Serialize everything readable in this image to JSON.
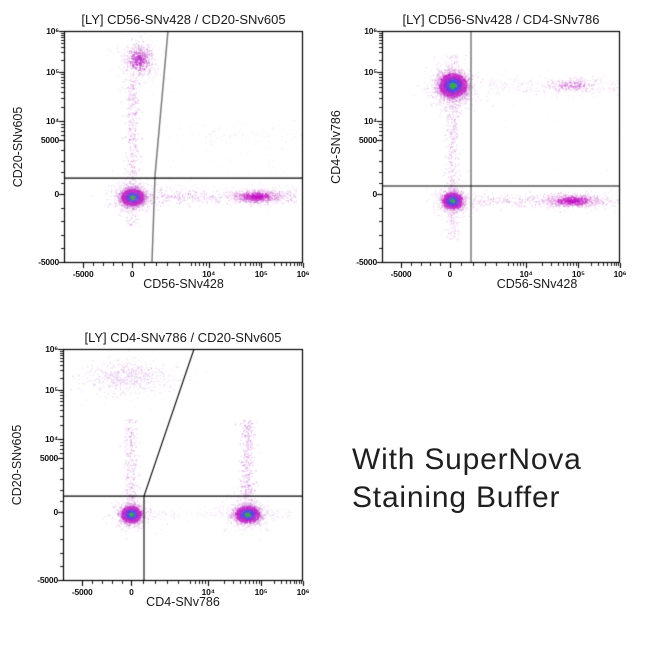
{
  "caption": {
    "line1": "With SuperNova",
    "line2": "Staining Buffer"
  },
  "palette": {
    "density_ramp": [
      "#2fb341",
      "#3a55e8",
      "#8c2fd9",
      "#c726c7",
      "#d88ad8"
    ],
    "sparse_dot": "#c45ecf",
    "sparse_dot_alt": "#b072d6",
    "band_dark": "#b325c0",
    "dense_magenta": [
      "#c315c3",
      "#ca38ca",
      "#d46fd4",
      "#e0a0e0"
    ],
    "mag_cluster": [
      "#c02ec8",
      "#c84fd0",
      "#d078d4",
      "#dfa8e2"
    ],
    "mag_soft": [
      "#cb55cf",
      "#d580d6",
      "#e2abe2"
    ],
    "speckle_gray": "#9b86b0",
    "gate_gray": "#7a7a7a",
    "gate_black": "#000000",
    "frame": "#000000",
    "text": "#1a1a1a"
  },
  "axes_shared": {
    "scale": "biexponential",
    "x": {
      "anchors": [
        [
          -5000,
          0.08
        ],
        [
          0,
          0.285
        ],
        [
          5000,
          0.53
        ],
        [
          10000,
          0.605
        ],
        [
          100000,
          0.825
        ],
        [
          1000000,
          1.0
        ]
      ],
      "ticks": [
        {
          "v": -5000,
          "f": 0.08,
          "label": "-5000"
        },
        {
          "v": 0,
          "f": 0.285,
          "label": "0"
        },
        {
          "v": 10000,
          "f": 0.605,
          "label": "10⁴"
        },
        {
          "v": 100000,
          "f": 0.825,
          "label": "10⁵"
        },
        {
          "v": 1000000,
          "f": 1.0,
          "label": "10⁶"
        }
      ],
      "minor_values": [
        -4000,
        -3000,
        -2000,
        -1000,
        1000,
        2000,
        3000,
        4000,
        5000,
        6000,
        7000,
        8000,
        9000,
        20000,
        30000,
        40000,
        50000,
        60000,
        70000,
        80000,
        90000,
        200000,
        300000,
        400000,
        500000,
        600000,
        700000,
        800000,
        900000
      ]
    },
    "y": {
      "anchors": [
        [
          -5000,
          0.995
        ],
        [
          0,
          0.703
        ],
        [
          5000,
          0.468
        ],
        [
          10000,
          0.39
        ],
        [
          100000,
          0.177
        ],
        [
          1000000,
          0.0
        ]
      ],
      "ticks": [
        {
          "v": 1000000,
          "f": 0.0,
          "label": "10⁶"
        },
        {
          "v": 100000,
          "f": 0.177,
          "label": "10⁵"
        },
        {
          "v": 10000,
          "f": 0.39,
          "label": "10⁴"
        },
        {
          "v": 5000,
          "f": 0.468,
          "label": "5000"
        },
        {
          "v": 0,
          "f": 0.703,
          "label": "0"
        },
        {
          "v": -5000,
          "f": 0.995,
          "label": "-5000"
        }
      ],
      "minor_values": [
        -4000,
        -3000,
        -2000,
        -1000,
        1000,
        2000,
        3000,
        4000,
        6000,
        7000,
        8000,
        9000,
        20000,
        30000,
        40000,
        50000,
        60000,
        70000,
        80000,
        90000,
        200000,
        300000,
        400000,
        500000,
        600000,
        700000,
        800000,
        900000
      ]
    }
  },
  "chart_data": [
    {
      "type": "scatter",
      "subtype": "flow-cytometry-pseudocolor",
      "title": "[LY] CD56-SNv428 / CD20-SNv605",
      "xlabel": "CD56-SNv428",
      "ylabel": "CD20-SNv605",
      "xlim": [
        -5000,
        1000000
      ],
      "ylim": [
        -5000,
        1000000
      ],
      "gates": [
        {
          "color": "gray",
          "pts": [
            [
              0.368,
              1.0
            ],
            [
              0.381,
              0.62
            ],
            [
              0.435,
              0.0
            ]
          ]
        },
        {
          "color": "black",
          "pts": [
            [
              0.0,
              0.634
            ],
            [
              1.0,
              0.634
            ]
          ]
        }
      ],
      "populations": [
        {
          "kind": "blob",
          "x": 0.285,
          "y": 0.715,
          "sx": 6,
          "sy": 4.5,
          "n": 2600,
          "core": "full"
        },
        {
          "kind": "blob",
          "x": 0.285,
          "y": 0.715,
          "sx": 12,
          "sy": 8,
          "n": 420,
          "core": "sparse",
          "alpha": 0.3
        },
        {
          "kind": "blob",
          "x": 0.312,
          "y": 0.125,
          "sx": 8,
          "sy": 9,
          "n": 620,
          "core": "mag"
        },
        {
          "kind": "blob",
          "x": 0.312,
          "y": 0.125,
          "sx": 14,
          "sy": 13,
          "n": 150,
          "core": "sparse",
          "alpha": 0.16
        },
        {
          "kind": "bandv",
          "x": 0.285,
          "y1": 0.2,
          "y2": 0.7,
          "sx": 3.5,
          "n": 380,
          "alpha": 0.32
        },
        {
          "kind": "bandv",
          "x": 0.285,
          "y1": 0.72,
          "y2": 0.84,
          "sx": 3.5,
          "n": 90,
          "alpha": 0.24
        },
        {
          "kind": "bandh",
          "y": 0.712,
          "x1": 0.33,
          "x2": 0.97,
          "sy": 3.5,
          "n": 430,
          "alpha": 0.3
        },
        {
          "kind": "blob",
          "x": 0.805,
          "y": 0.712,
          "sx": 13,
          "sy": 3.5,
          "n": 780,
          "core": "magdense"
        },
        {
          "kind": "bandh",
          "y": 0.45,
          "x1": 0.52,
          "x2": 1.0,
          "sy": 5,
          "n": 90,
          "alpha": 0.12
        },
        {
          "kind": "sprinkle",
          "x1": 0.4,
          "x2": 1.0,
          "y1": 0.38,
          "y2": 0.64,
          "n": 130,
          "alpha": 0.09
        },
        {
          "kind": "sprinkle",
          "x1": 0.33,
          "x2": 0.98,
          "y1": 0.655,
          "y2": 0.7,
          "n": 90,
          "alpha": 0.12
        }
      ]
    },
    {
      "type": "scatter",
      "subtype": "flow-cytometry-pseudocolor",
      "title": "[LY] CD56-SNv428 / CD4-SNv786",
      "xlabel": "CD56-SNv428",
      "ylabel": "CD4-SNv786",
      "xlim": [
        -5000,
        1000000
      ],
      "ylim": [
        -5000,
        1000000
      ],
      "gates": [
        {
          "color": "gray",
          "pts": [
            [
              0.374,
              1.0
            ],
            [
              0.374,
              0.0
            ]
          ]
        },
        {
          "color": "black",
          "pts": [
            [
              0.0,
              0.668
            ],
            [
              1.0,
              0.668
            ]
          ]
        }
      ],
      "populations": [
        {
          "kind": "blob",
          "x": 0.296,
          "y": 0.233,
          "sx": 7.5,
          "sy": 6.5,
          "n": 3000,
          "core": "full"
        },
        {
          "kind": "blob",
          "x": 0.294,
          "y": 0.248,
          "sx": 13,
          "sy": 11,
          "n": 520,
          "core": "sparse",
          "alpha": 0.28
        },
        {
          "kind": "blob",
          "x": 0.295,
          "y": 0.73,
          "sx": 5.5,
          "sy": 4.5,
          "n": 1500,
          "core": "full"
        },
        {
          "kind": "blob",
          "x": 0.295,
          "y": 0.73,
          "sx": 10,
          "sy": 8,
          "n": 280,
          "core": "sparse",
          "alpha": 0.26
        },
        {
          "kind": "bandh",
          "y": 0.233,
          "x1": 0.45,
          "x2": 1.0,
          "sy": 4.5,
          "n": 240,
          "alpha": 0.18
        },
        {
          "kind": "blob",
          "x": 0.8,
          "y": 0.233,
          "sx": 16,
          "sy": 4.5,
          "n": 300,
          "core": "magsoft"
        },
        {
          "kind": "bandh",
          "y": 0.73,
          "x1": 0.38,
          "x2": 1.0,
          "sy": 3.5,
          "n": 380,
          "alpha": 0.28
        },
        {
          "kind": "blob",
          "x": 0.8,
          "y": 0.73,
          "sx": 15,
          "sy": 3.5,
          "n": 680,
          "core": "magdense"
        },
        {
          "kind": "bandv",
          "x": 0.296,
          "y1": 0.3,
          "y2": 0.7,
          "sx": 3.5,
          "n": 300,
          "alpha": 0.3
        },
        {
          "kind": "bandv",
          "x": 0.296,
          "y1": 0.77,
          "y2": 0.9,
          "sx": 3.5,
          "n": 110,
          "alpha": 0.22
        },
        {
          "kind": "bandv",
          "x": 0.296,
          "y1": 0.1,
          "y2": 0.17,
          "sx": 4,
          "n": 60,
          "alpha": 0.18
        },
        {
          "kind": "sprinkle",
          "x1": 0.4,
          "x2": 1.0,
          "y1": 0.28,
          "y2": 0.66,
          "n": 70,
          "alpha": 0.07
        }
      ]
    },
    {
      "type": "scatter",
      "subtype": "flow-cytometry-pseudocolor",
      "title": "[LY] CD4-SNv786 / CD20-SNv605",
      "xlabel": "CD4-SNv786",
      "ylabel": "CD20-SNv605",
      "xlim": [
        -5000,
        1000000
      ],
      "ylim": [
        -5000,
        1000000
      ],
      "gates": [
        {
          "color": "black",
          "pts": [
            [
              0.0,
              0.634
            ],
            [
              1.0,
              0.634
            ]
          ]
        },
        {
          "color": "black",
          "pts": [
            [
              0.3375,
              1.0
            ],
            [
              0.3375,
              0.634
            ],
            [
              0.546,
              0.0
            ]
          ]
        }
      ],
      "populations": [
        {
          "kind": "blob",
          "x": 0.283,
          "y": 0.711,
          "sx": 5.5,
          "sy": 4.5,
          "n": 1700,
          "core": "full"
        },
        {
          "kind": "blob",
          "x": 0.283,
          "y": 0.711,
          "sx": 10,
          "sy": 8,
          "n": 300,
          "core": "sparse",
          "alpha": 0.28
        },
        {
          "kind": "blob",
          "x": 0.767,
          "y": 0.711,
          "sx": 6.5,
          "sy": 4.5,
          "n": 2000,
          "core": "full"
        },
        {
          "kind": "blob",
          "x": 0.767,
          "y": 0.711,
          "sx": 11,
          "sy": 8,
          "n": 350,
          "core": "sparse",
          "alpha": 0.28
        },
        {
          "kind": "blob",
          "x": 0.27,
          "y": 0.12,
          "sx": 22,
          "sy": 8,
          "n": 520,
          "core": "sparse",
          "alpha": 0.26
        },
        {
          "kind": "blob",
          "x": 0.27,
          "y": 0.115,
          "sx": 30,
          "sy": 12,
          "n": 150,
          "core": "sparse",
          "alpha": 0.12
        },
        {
          "kind": "bandv",
          "x": 0.283,
          "y1": 0.3,
          "y2": 0.69,
          "sx": 3.5,
          "n": 300,
          "alpha": 0.3
        },
        {
          "kind": "bandv",
          "x": 0.767,
          "y1": 0.3,
          "y2": 0.69,
          "sx": 4,
          "n": 430,
          "alpha": 0.32
        },
        {
          "kind": "bandh",
          "y": 0.711,
          "x1": 0.33,
          "x2": 0.72,
          "sy": 3,
          "n": 110,
          "alpha": 0.14
        },
        {
          "kind": "sprinkle",
          "x1": 0.8,
          "x2": 0.95,
          "y1": 0.69,
          "y2": 0.73,
          "n": 60,
          "alpha": 0.15
        }
      ]
    }
  ]
}
